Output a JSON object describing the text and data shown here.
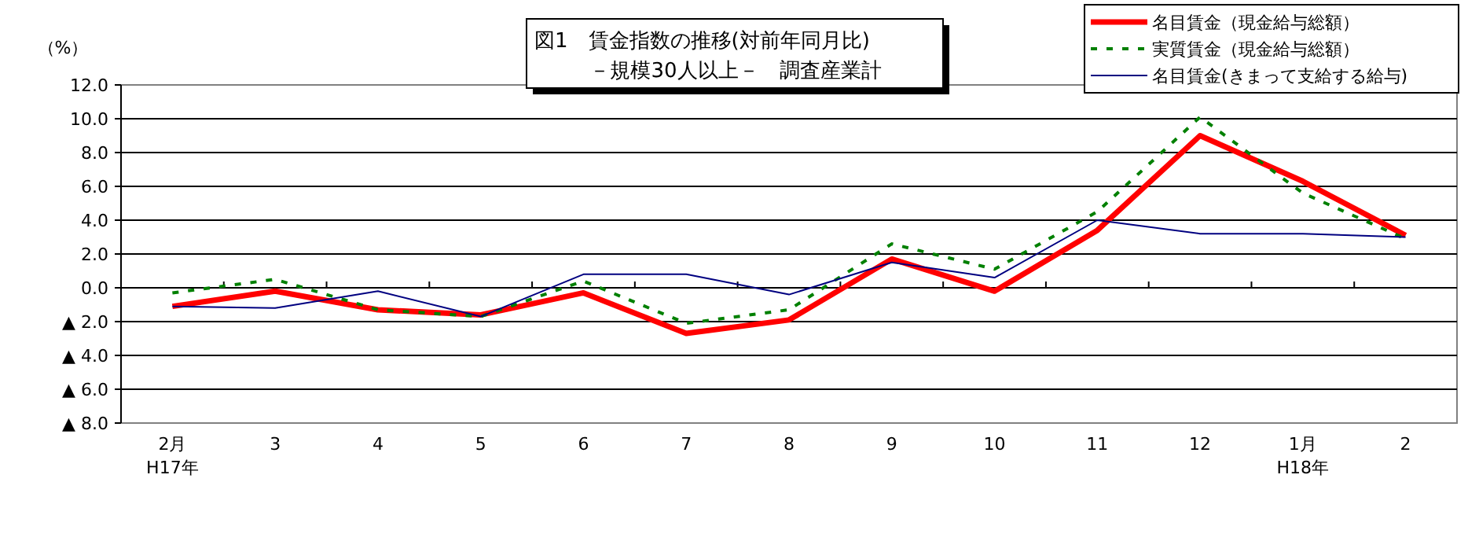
{
  "chart_data": {
    "type": "line",
    "title": "図1　賃金指数の推移(対前年同月比)",
    "subtitle": "－規模30人以上－　調査産業計",
    "ylabel": "（%）",
    "categories": [
      "2月\nH17年",
      "3",
      "4",
      "5",
      "6",
      "7",
      "8",
      "9",
      "10",
      "11",
      "12",
      "1月\nH18年",
      "2"
    ],
    "series": [
      {
        "name": "名目賃金（現金給与総額）",
        "color": "#ff0000",
        "line_style": "solid",
        "values": [
          -1.1,
          -0.2,
          -1.3,
          -1.6,
          -0.3,
          -2.7,
          -1.9,
          1.7,
          -0.2,
          3.4,
          9.0,
          6.3,
          3.1
        ]
      },
      {
        "name": "実質賃金（現金給与総額）",
        "color": "#008000",
        "line_style": "dashed",
        "values": [
          -0.3,
          0.5,
          -1.3,
          -1.7,
          0.4,
          -2.1,
          -1.3,
          2.6,
          1.1,
          4.5,
          10.1,
          5.6,
          2.9
        ]
      },
      {
        "name": "名目賃金(きまって支給する給与)",
        "color": "#000080",
        "line_style": "solid",
        "values": [
          -1.1,
          -1.2,
          -0.2,
          -1.7,
          0.8,
          0.8,
          -0.4,
          1.5,
          0.6,
          4.0,
          3.2,
          3.2,
          3.0
        ]
      }
    ],
    "ylim": [
      -8,
      12
    ],
    "yticks": [
      {
        "value": 12,
        "label": "12.0"
      },
      {
        "value": 10,
        "label": "10.0"
      },
      {
        "value": 8,
        "label": "8.0"
      },
      {
        "value": 6,
        "label": "6.0"
      },
      {
        "value": 4,
        "label": "4.0"
      },
      {
        "value": 2,
        "label": "2.0"
      },
      {
        "value": 0,
        "label": "0.0"
      },
      {
        "value": -2,
        "label": "▲ 2.0"
      },
      {
        "value": -4,
        "label": "▲ 4.0"
      },
      {
        "value": -6,
        "label": "▲ 6.0"
      },
      {
        "value": -8,
        "label": "▲ 8.0"
      }
    ],
    "grid": "y",
    "legend": "top right",
    "marker": "none"
  }
}
